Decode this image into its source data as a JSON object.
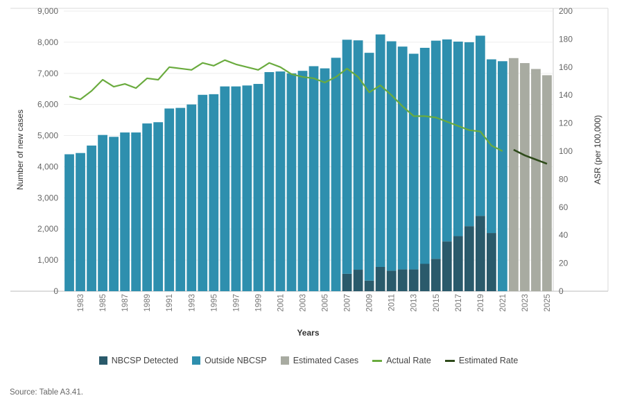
{
  "chart_data": {
    "type": "bar",
    "xlabel": "Years",
    "ylabel_left": "Number of new cases",
    "ylabel_right": "ASR (per 100,000)",
    "ylim_left": [
      0,
      9000
    ],
    "yticks_left": [
      "0",
      "1,000",
      "2,000",
      "3,000",
      "4,000",
      "5,000",
      "6,000",
      "7,000",
      "8,000",
      "9,000"
    ],
    "ylim_right": [
      0,
      200
    ],
    "yticks_right": [
      "0",
      "20",
      "40",
      "60",
      "80",
      "100",
      "120",
      "140",
      "160",
      "180",
      "200"
    ],
    "years": [
      1982,
      1983,
      1984,
      1985,
      1986,
      1987,
      1988,
      1989,
      1990,
      1991,
      1992,
      1993,
      1994,
      1995,
      1996,
      1997,
      1998,
      1999,
      2000,
      2001,
      2002,
      2003,
      2004,
      2005,
      2006,
      2007,
      2008,
      2009,
      2010,
      2011,
      2012,
      2013,
      2014,
      2015,
      2016,
      2017,
      2018,
      2019,
      2020,
      2021,
      2022,
      2023,
      2024,
      2025
    ],
    "x_tick_labels": [
      "1983",
      "1985",
      "1987",
      "1989",
      "1991",
      "1993",
      "1995",
      "1997",
      "1999",
      "2001",
      "2003",
      "2005",
      "2007",
      "2009",
      "2011",
      "2013",
      "2015",
      "2017",
      "2019",
      "2021",
      "2023",
      "2025"
    ],
    "series": [
      {
        "name": "NBCSP Detected",
        "color": "#2a5a6b",
        "kind": "bar-stack",
        "values": [
          0,
          0,
          0,
          0,
          0,
          0,
          0,
          0,
          0,
          0,
          0,
          0,
          0,
          0,
          0,
          0,
          0,
          0,
          0,
          0,
          0,
          0,
          0,
          0,
          0,
          560,
          690,
          340,
          780,
          660,
          700,
          700,
          880,
          1040,
          1600,
          1770,
          2090,
          2420,
          1870,
          0,
          0,
          0,
          0,
          0
        ]
      },
      {
        "name": "Outside NBCSP",
        "color": "#2e8fae",
        "kind": "bar-stack",
        "values": [
          4400,
          4440,
          4680,
          5020,
          4960,
          5100,
          5100,
          5390,
          5430,
          5870,
          5890,
          6000,
          6310,
          6330,
          6580,
          6580,
          6610,
          6660,
          7040,
          7060,
          7000,
          7080,
          7230,
          7160,
          7500,
          7520,
          7370,
          7320,
          7470,
          7370,
          7160,
          6930,
          6940,
          7010,
          6490,
          6250,
          5910,
          5790,
          5580,
          7390,
          0,
          0,
          0,
          0
        ]
      },
      {
        "name": "Estimated Cases",
        "color": "#a8aba1",
        "kind": "bar",
        "values": [
          0,
          0,
          0,
          0,
          0,
          0,
          0,
          0,
          0,
          0,
          0,
          0,
          0,
          0,
          0,
          0,
          0,
          0,
          0,
          0,
          0,
          0,
          0,
          0,
          0,
          0,
          0,
          0,
          0,
          0,
          0,
          0,
          0,
          0,
          0,
          0,
          0,
          0,
          0,
          0,
          7490,
          7330,
          7140,
          6940
        ]
      },
      {
        "name": "Actual Rate",
        "color": "#6aab3e",
        "kind": "line",
        "axis": "right",
        "values": [
          139,
          137,
          143,
          151,
          146,
          148,
          145,
          152,
          151,
          160,
          159,
          158,
          163,
          161,
          165,
          162,
          160,
          158,
          163,
          160,
          155,
          153,
          152,
          149,
          153,
          159,
          153,
          142,
          147,
          140,
          132,
          125,
          125,
          124,
          121,
          118,
          115,
          114,
          104,
          100,
          null,
          null,
          null,
          null
        ]
      },
      {
        "name": "Estimated Rate",
        "color": "#2e4a1a",
        "kind": "line",
        "axis": "right",
        "values": [
          null,
          null,
          null,
          null,
          null,
          null,
          null,
          null,
          null,
          null,
          null,
          null,
          null,
          null,
          null,
          null,
          null,
          null,
          null,
          null,
          null,
          null,
          null,
          null,
          null,
          null,
          null,
          null,
          null,
          null,
          null,
          null,
          null,
          null,
          null,
          null,
          null,
          null,
          null,
          null,
          101,
          97,
          94,
          91
        ]
      }
    ],
    "legend": [
      "NBCSP Detected",
      "Outside NBCSP",
      "Estimated Cases",
      "Actual Rate",
      "Estimated Rate"
    ],
    "legend_position": "bottom"
  },
  "source_text": "Source: Table A3.41."
}
